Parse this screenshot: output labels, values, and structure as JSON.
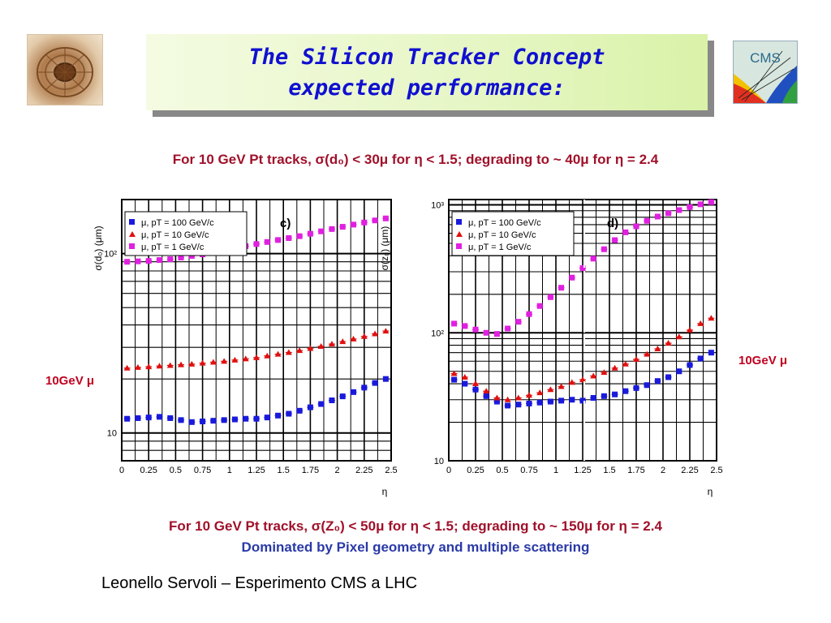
{
  "title": {
    "line1": "The Silicon Tracker Concept",
    "line2": "expected performance:"
  },
  "caption_top": "For 10 GeV Pt tracks, σ(d₀) < 30μ for η < 1.5; degrading to ~ 40μ for η = 2.4",
  "caption_bottom": "For 10 GeV Pt tracks, σ(Z₀) < 50μ for η < 1.5; degrading to ~ 150μ for η = 2.4",
  "caption_bottom2": "Dominated by Pixel geometry and multiple scattering",
  "side_label_left": "10GeV μ",
  "side_label_right": "10GeV μ",
  "footer": "Leonello Servoli – Esperimento CMS a LHC",
  "logo_right_text": "CMS",
  "colors": {
    "pt100": "#1a1adc",
    "pt10": "#e01010",
    "pt1": "#e020e0",
    "title_text": "#1010d0",
    "caption": "#a0102a"
  },
  "chart_data": [
    {
      "type": "scatter",
      "panel_label": "c)",
      "ylabel": "σ(d₀) (μm)",
      "xlabel": "η",
      "xlim": [
        0,
        2.5
      ],
      "ylim": [
        7,
        200
      ],
      "yscale": "log",
      "x_ticks": [
        "0",
        "0.25",
        "0.5",
        "0.75",
        "1",
        "1.25",
        "1.5",
        "1.75",
        "2",
        "2.25",
        "2.5"
      ],
      "y_ticks": [
        {
          "label": "10",
          "value": 10
        },
        {
          "label": "10²",
          "value": 100
        }
      ],
      "grid": true,
      "legend": "top-left",
      "x": [
        0.05,
        0.15,
        0.25,
        0.35,
        0.45,
        0.55,
        0.65,
        0.75,
        0.85,
        0.95,
        1.05,
        1.15,
        1.25,
        1.35,
        1.45,
        1.55,
        1.65,
        1.75,
        1.85,
        1.95,
        2.05,
        2.15,
        2.25,
        2.35,
        2.45
      ],
      "series": [
        {
          "name": "μ, pT = 100 GeV/c",
          "marker": "square",
          "color": "#1a1adc",
          "values": [
            12.0,
            12.1,
            12.2,
            12.3,
            12.1,
            11.8,
            11.5,
            11.6,
            11.7,
            11.8,
            11.9,
            12.0,
            12.0,
            12.2,
            12.5,
            12.8,
            13.3,
            13.9,
            14.5,
            15.2,
            16.0,
            16.9,
            17.9,
            19.0,
            20.0
          ]
        },
        {
          "name": "μ, pT = 10 GeV/c",
          "marker": "triangle",
          "color": "#e01010",
          "values": [
            23.0,
            23.2,
            23.4,
            23.6,
            23.8,
            24.0,
            24.2,
            24.5,
            24.8,
            25.1,
            25.5,
            25.9,
            26.3,
            26.9,
            27.5,
            28.1,
            28.8,
            29.6,
            30.4,
            31.3,
            32.3,
            33.4,
            34.5,
            35.7,
            37.0
          ]
        },
        {
          "name": "μ, pT = 1 GeV/c",
          "marker": "square",
          "color": "#e020e0",
          "values": [
            90.0,
            90.5,
            91.0,
            92.0,
            93.0,
            95.0,
            97.0,
            99.0,
            101.0,
            104.0,
            107.0,
            110.0,
            113.0,
            116.0,
            119.0,
            122.0,
            125.0,
            129.0,
            133.0,
            137.0,
            141.0,
            145.0,
            149.0,
            153.0,
            157.0
          ]
        }
      ]
    },
    {
      "type": "scatter",
      "panel_label": "d)",
      "ylabel": "σ(z₀) (μm)",
      "xlabel": "η",
      "xlim": [
        0,
        2.5
      ],
      "ylim": [
        10,
        1100
      ],
      "yscale": "log",
      "x_ticks": [
        "0",
        "0.25",
        "0.5",
        "0.75",
        "1",
        "1.25",
        "1.5",
        "1.75",
        "2",
        "2.25",
        "2.5"
      ],
      "y_ticks": [
        {
          "label": "10",
          "value": 10
        },
        {
          "label": "10²",
          "value": 100
        },
        {
          "label": "10³",
          "value": 1000
        }
      ],
      "grid": true,
      "legend": "top-left",
      "x": [
        0.05,
        0.15,
        0.25,
        0.35,
        0.45,
        0.55,
        0.65,
        0.75,
        0.85,
        0.95,
        1.05,
        1.15,
        1.25,
        1.35,
        1.45,
        1.55,
        1.65,
        1.75,
        1.85,
        1.95,
        2.05,
        2.15,
        2.25,
        2.35,
        2.45
      ],
      "series": [
        {
          "name": "μ, pT = 100 GeV/c",
          "marker": "square",
          "color": "#1a1adc",
          "values": [
            43,
            40,
            36,
            32,
            29,
            27,
            27.5,
            28,
            28.5,
            29,
            29.5,
            30,
            29.5,
            31,
            32,
            33,
            35,
            37,
            39,
            42,
            45,
            50,
            56,
            63,
            70
          ]
        },
        {
          "name": "μ, pT = 10 GeV/c",
          "marker": "triangle",
          "color": "#e01010",
          "values": [
            48,
            45,
            40,
            35,
            31,
            30,
            31,
            32.5,
            34,
            36,
            38,
            41,
            43,
            46,
            49,
            53,
            57,
            62,
            68,
            75,
            83,
            93,
            105,
            118,
            130
          ]
        },
        {
          "name": "μ, pT = 1 GeV/c",
          "marker": "square",
          "color": "#e020e0",
          "values": [
            118,
            113,
            106,
            100,
            98,
            108,
            122,
            140,
            162,
            190,
            225,
            270,
            320,
            380,
            450,
            530,
            610,
            680,
            750,
            810,
            860,
            910,
            960,
            1010,
            1050
          ]
        }
      ]
    }
  ]
}
